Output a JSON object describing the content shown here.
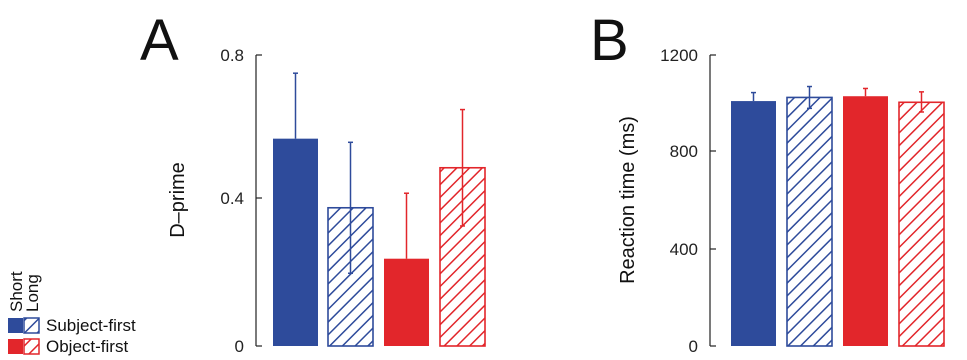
{
  "colors": {
    "blue": "#2e4b9b",
    "red": "#e2262b"
  },
  "legend": {
    "short_label": "Short",
    "long_label": "Long",
    "rows": [
      {
        "label": "Subject-first",
        "color": "blue"
      },
      {
        "label": "Object-first",
        "color": "red"
      }
    ]
  },
  "chart_data": [
    {
      "panel": "A",
      "type": "bar",
      "ylabel": "D–prime",
      "ylim": [
        0,
        0.8
      ],
      "yticks": [
        "0",
        "0.4",
        "0.8"
      ],
      "bars": [
        {
          "condition": "Subject-first",
          "duration": "Short",
          "value": 0.57,
          "err_low": 0.57,
          "err_high": 0.75
        },
        {
          "condition": "Subject-first",
          "duration": "Long",
          "value": 0.38,
          "err_low": 0.2,
          "err_high": 0.56
        },
        {
          "condition": "Object-first",
          "duration": "Short",
          "value": 0.24,
          "err_low": 0.24,
          "err_high": 0.42
        },
        {
          "condition": "Object-first",
          "duration": "Long",
          "value": 0.49,
          "err_low": 0.33,
          "err_high": 0.65
        }
      ]
    },
    {
      "panel": "B",
      "type": "bar",
      "ylabel": "Reaction time (ms)",
      "ylim": [
        0,
        1200
      ],
      "yticks": [
        "0",
        "400",
        "800",
        "1200"
      ],
      "bars": [
        {
          "condition": "Subject-first",
          "duration": "Short",
          "value": 1010,
          "err_low": 1010,
          "err_high": 1045
        },
        {
          "condition": "Subject-first",
          "duration": "Long",
          "value": 1025,
          "err_low": 980,
          "err_high": 1070
        },
        {
          "condition": "Object-first",
          "duration": "Short",
          "value": 1030,
          "err_low": 1030,
          "err_high": 1062
        },
        {
          "condition": "Object-first",
          "duration": "Long",
          "value": 1005,
          "err_low": 965,
          "err_high": 1048
        }
      ]
    }
  ]
}
